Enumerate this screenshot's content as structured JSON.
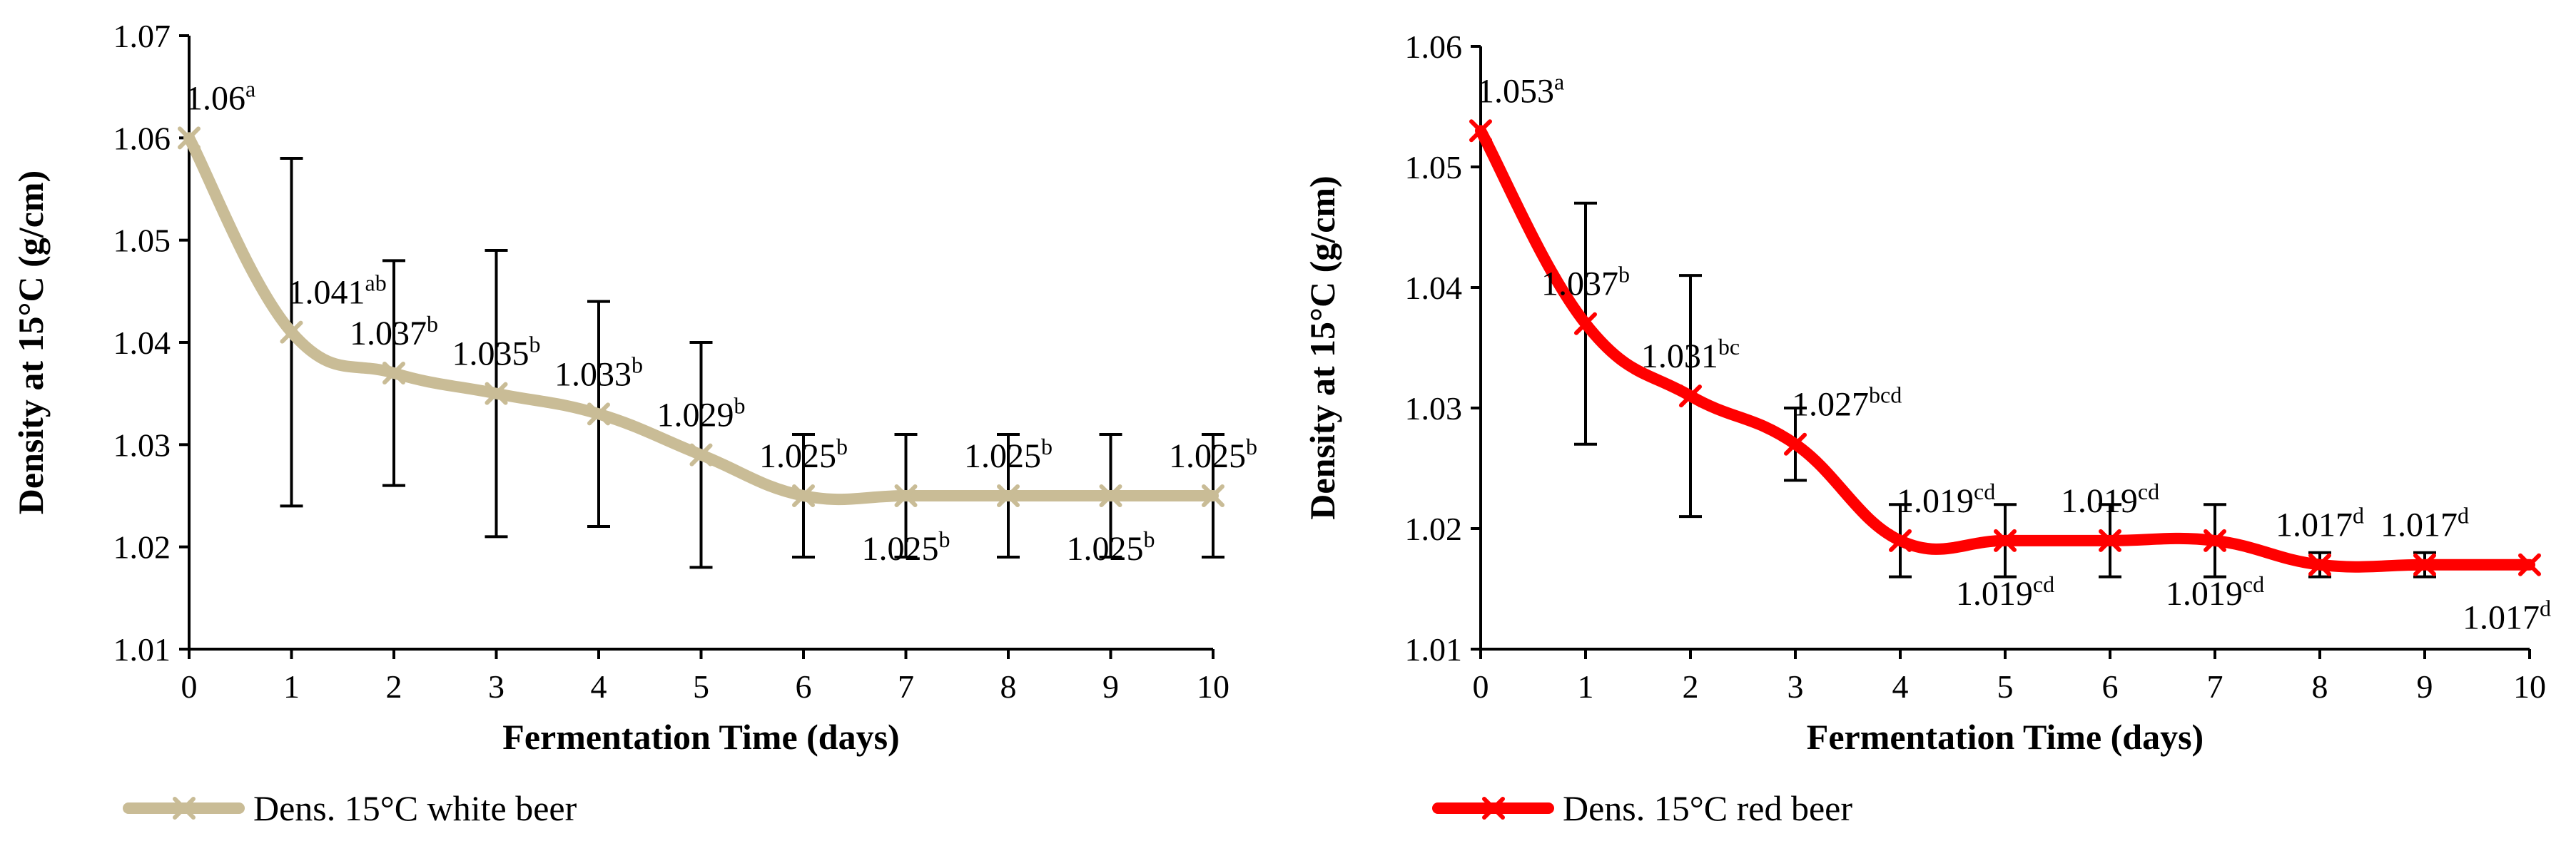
{
  "chart_data": [
    {
      "type": "line",
      "name": "white",
      "color": "#C9BC96",
      "title": "",
      "xlabel": "Fermentation Time (days)",
      "ylabel": "Density at  15°C (g/cm)",
      "ylim": [
        1.01,
        1.07
      ],
      "yticks": [
        "1.01",
        "1.02",
        "1.03",
        "1.04",
        "1.05",
        "1.06",
        "1.07"
      ],
      "xlim": [
        0,
        10
      ],
      "xticks": [
        "0",
        "1",
        "2",
        "3",
        "4",
        "5",
        "6",
        "7",
        "8",
        "9",
        "10"
      ],
      "legend": "Dens. 15°C white beer",
      "legend_position": "bottom-left",
      "x": [
        0,
        1,
        2,
        3,
        4,
        5,
        6,
        7,
        8,
        9,
        10
      ],
      "y": [
        1.06,
        1.041,
        1.037,
        1.035,
        1.033,
        1.029,
        1.025,
        1.025,
        1.025,
        1.025,
        1.025
      ],
      "err_low": [
        1.06,
        1.024,
        1.026,
        1.021,
        1.022,
        1.018,
        1.019,
        1.019,
        1.019,
        1.019,
        1.019
      ],
      "err_high": [
        1.06,
        1.058,
        1.048,
        1.049,
        1.044,
        1.04,
        1.031,
        1.031,
        1.031,
        1.031,
        1.031
      ],
      "labels": [
        {
          "value": "1.06",
          "sup": "a",
          "pos": "above-right"
        },
        {
          "value": "1.041",
          "sup": "ab",
          "pos": "above-right"
        },
        {
          "value": "1.037",
          "sup": "b",
          "pos": "above"
        },
        {
          "value": "1.035",
          "sup": "b",
          "pos": "above"
        },
        {
          "value": "1.033",
          "sup": "b",
          "pos": "above"
        },
        {
          "value": "1.029",
          "sup": "b",
          "pos": "above"
        },
        {
          "value": "1.025",
          "sup": "b",
          "pos": "above"
        },
        {
          "value": "1.025",
          "sup": "b",
          "pos": "below"
        },
        {
          "value": "1.025",
          "sup": "b",
          "pos": "above"
        },
        {
          "value": "1.025",
          "sup": "b",
          "pos": "below"
        },
        {
          "value": "1.025",
          "sup": "b",
          "pos": "above"
        }
      ]
    },
    {
      "type": "line",
      "name": "red",
      "color": "#FF0000",
      "title": "",
      "xlabel": "Fermentation Time (days)",
      "ylabel": "Density at 15°C (g/cm)",
      "ylim": [
        1.01,
        1.06
      ],
      "yticks": [
        "1.01",
        "1.02",
        "1.03",
        "1.04",
        "1.05",
        "1.06"
      ],
      "xlim": [
        0,
        10
      ],
      "xticks": [
        "0",
        "1",
        "2",
        "3",
        "4",
        "5",
        "6",
        "7",
        "8",
        "9",
        "10"
      ],
      "legend": "Dens. 15°C red beer",
      "legend_position": "bottom-left",
      "x": [
        0,
        1,
        2,
        3,
        4,
        5,
        6,
        7,
        8,
        9,
        10
      ],
      "y": [
        1.053,
        1.037,
        1.031,
        1.027,
        1.019,
        1.019,
        1.019,
        1.019,
        1.017,
        1.017,
        1.017
      ],
      "err_low": [
        1.053,
        1.027,
        1.021,
        1.024,
        1.016,
        1.016,
        1.016,
        1.016,
        1.016,
        1.016,
        1.017
      ],
      "err_high": [
        1.053,
        1.047,
        1.041,
        1.03,
        1.022,
        1.022,
        1.022,
        1.022,
        1.018,
        1.018,
        1.017
      ],
      "labels": [
        {
          "value": "1.053",
          "sup": "a",
          "pos": "above-right"
        },
        {
          "value": "1.037",
          "sup": "b",
          "pos": "above"
        },
        {
          "value": "1.031",
          "sup": "bc",
          "pos": "above"
        },
        {
          "value": "1.027",
          "sup": "bcd",
          "pos": "above-right"
        },
        {
          "value": "1.019",
          "sup": "cd",
          "pos": "above-right"
        },
        {
          "value": "1.019",
          "sup": "cd",
          "pos": "below"
        },
        {
          "value": "1.019",
          "sup": "cd",
          "pos": "above"
        },
        {
          "value": "1.019",
          "sup": "cd",
          "pos": "below"
        },
        {
          "value": "1.017",
          "sup": "d",
          "pos": "above"
        },
        {
          "value": "1.017",
          "sup": "d",
          "pos": "above"
        },
        {
          "value": "1.017",
          "sup": "d",
          "pos": "below-left"
        }
      ]
    }
  ]
}
